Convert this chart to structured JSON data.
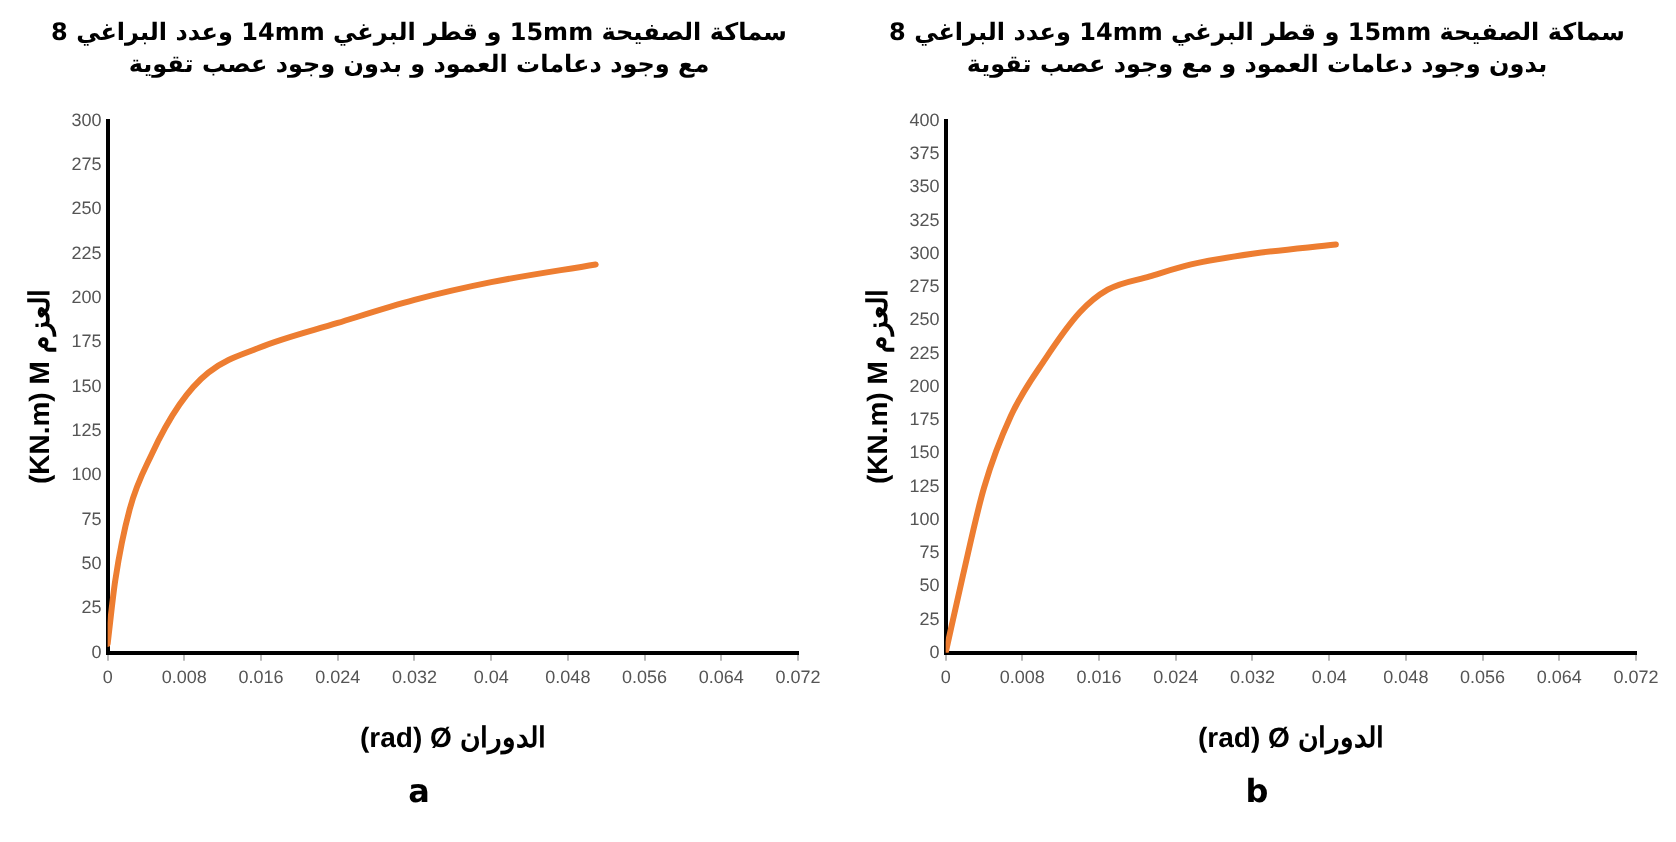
{
  "chart_data": [
    {
      "type": "line",
      "title": "سماكة الصفيحة 15mm و قطر البرغي 14mm وعدد البراغي 8\nمع وجود دعامات العمود و بدون وجود عصب تقوية",
      "xlabel": "(rad) Ø الدوران",
      "ylabel": "(KN.m) M العزم",
      "annotations": [
        "a"
      ],
      "series": [
        {
          "color": "#ed7d31",
          "x": [
            0,
            0.0008,
            0.0023,
            0.0046,
            0.0075,
            0.0105,
            0.0158,
            0.024,
            0.032,
            0.04,
            0.0509
          ],
          "values": [
            5,
            41,
            81,
            112,
            140,
            158,
            172,
            186,
            199,
            209,
            219
          ]
        }
      ],
      "xlim": [
        0,
        0.072
      ],
      "xticks": [
        0,
        0.008,
        0.016,
        0.024,
        0.032,
        0.04,
        0.048,
        0.056,
        0.064,
        0.072
      ],
      "ylim": [
        0,
        300
      ],
      "yticks": [
        0,
        25,
        50,
        75,
        100,
        125,
        150,
        175,
        200,
        225,
        250,
        275,
        300
      ],
      "grid": false,
      "legend": false,
      "marker": "none",
      "line_style": "solid"
    },
    {
      "type": "line",
      "title": "سماكة الصفيحة 15mm و قطر البرغي 14mm وعدد البراغي 8\nبدون وجود دعامات العمود و مع وجود عصب تقوية",
      "xlabel": "(rad) Ø الدوران",
      "ylabel": "(KN.m) M العزم",
      "annotations": [
        "b"
      ],
      "series": [
        {
          "color": "#ed7d31",
          "x": [
            0,
            0.0018,
            0.004,
            0.0068,
            0.0104,
            0.014,
            0.0169,
            0.0213,
            0.0256,
            0.032,
            0.0407
          ],
          "values": [
            0,
            58,
            124,
            178,
            221,
            256,
            273,
            283,
            292,
            300,
            307
          ]
        }
      ],
      "xlim": [
        0,
        0.072
      ],
      "xticks": [
        0,
        0.008,
        0.016,
        0.024,
        0.032,
        0.04,
        0.048,
        0.056,
        0.064,
        0.072
      ],
      "ylim": [
        0,
        400
      ],
      "yticks": [
        0,
        25,
        50,
        75,
        100,
        125,
        150,
        175,
        200,
        225,
        250,
        275,
        300,
        325,
        350,
        375,
        400
      ],
      "grid": false,
      "legend": false,
      "marker": "none",
      "line_style": "solid"
    }
  ]
}
